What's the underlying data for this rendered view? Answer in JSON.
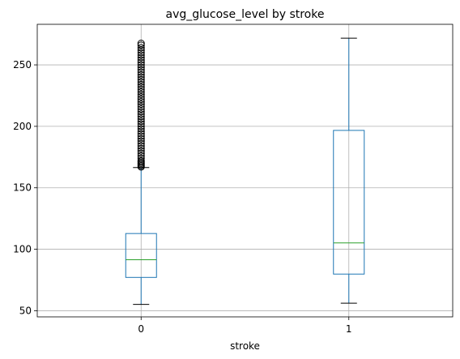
{
  "chart_data": {
    "type": "box",
    "title": "avg_glucose_level by stroke",
    "xlabel": "stroke",
    "ylabel": "",
    "categories": [
      "0",
      "1"
    ],
    "ylim": [
      45,
      283
    ],
    "yticks": [
      50,
      100,
      150,
      200,
      250
    ],
    "grid": true,
    "boxes": [
      {
        "category": "0",
        "whisker_low": 55.1,
        "q1": 77.1,
        "median": 91.5,
        "q3": 112.8,
        "whisker_high": 166.5,
        "outliers": [
          167,
          168,
          169,
          170,
          171,
          172,
          174,
          176,
          178,
          180,
          182,
          184,
          186,
          188,
          190,
          192,
          194,
          196,
          198,
          200,
          202,
          204,
          206,
          208,
          210,
          212,
          214,
          216,
          218,
          220,
          222,
          224,
          226,
          228,
          230,
          232,
          234,
          236,
          238,
          240,
          242,
          244,
          246,
          248,
          250,
          252,
          254,
          256,
          258,
          260,
          262,
          264,
          266,
          267.5
        ]
      },
      {
        "category": "1",
        "whisker_low": 56.1,
        "q1": 79.8,
        "median": 105.2,
        "q3": 196.7,
        "whisker_high": 271.7,
        "outliers": []
      }
    ],
    "colors": {
      "box": "#1f77b4",
      "median": "#2ca02c",
      "whisker_cap": "#000000",
      "outlier": "#000000",
      "grid": "#b0b0b0"
    }
  }
}
